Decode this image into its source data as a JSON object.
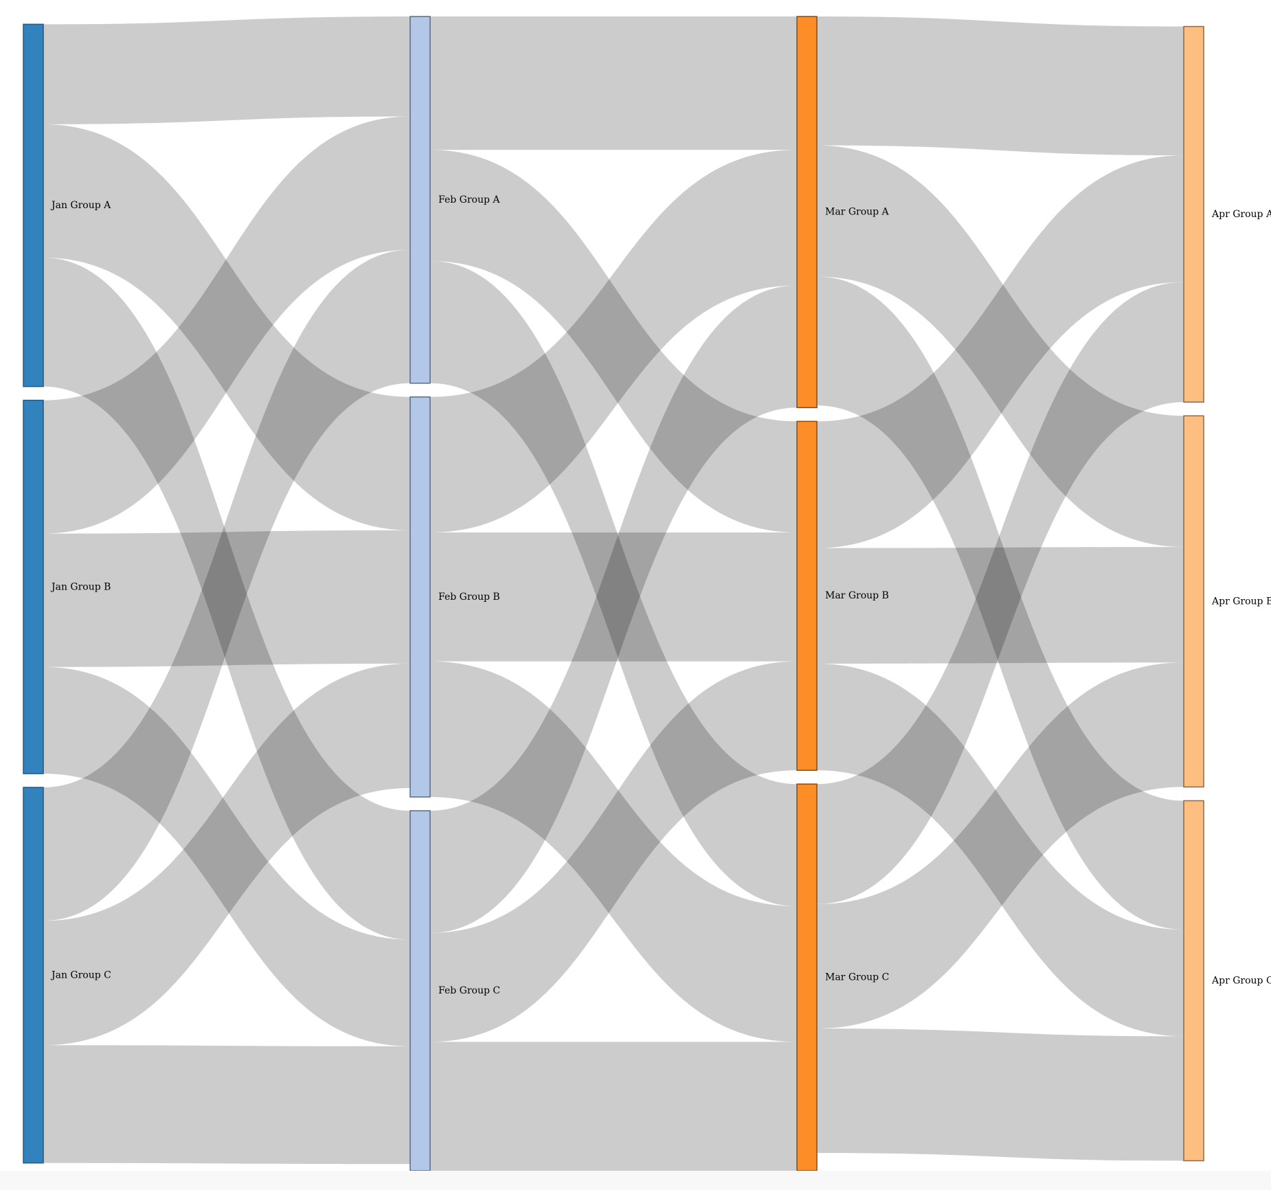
{
  "chart_data": {
    "type": "sankey",
    "columns": [
      "Jan",
      "Feb",
      "Mar",
      "Apr"
    ],
    "nodes": [
      {
        "id": "jan_a",
        "label": "Jan Group A",
        "column": 0,
        "color": "#3182bd",
        "stroke": "#215a85"
      },
      {
        "id": "jan_b",
        "label": "Jan Group B",
        "column": 0,
        "color": "#3182bd",
        "stroke": "#215a85"
      },
      {
        "id": "jan_c",
        "label": "Jan Group C",
        "column": 0,
        "color": "#3182bd",
        "stroke": "#215a85"
      },
      {
        "id": "feb_a",
        "label": "Feb Group A",
        "column": 1,
        "color": "#b3c7e8",
        "stroke": "#5a6b80"
      },
      {
        "id": "feb_b",
        "label": "Feb Group B",
        "column": 1,
        "color": "#b3c7e8",
        "stroke": "#5a6b80"
      },
      {
        "id": "feb_c",
        "label": "Feb Group C",
        "column": 1,
        "color": "#b3c7e8",
        "stroke": "#5a6b80"
      },
      {
        "id": "mar_a",
        "label": "Mar Group A",
        "column": 2,
        "color": "#fd8d27",
        "stroke": "#8a4a12"
      },
      {
        "id": "mar_b",
        "label": "Mar Group B",
        "column": 2,
        "color": "#fd8d27",
        "stroke": "#8a4a12"
      },
      {
        "id": "mar_c",
        "label": "Mar Group C",
        "column": 2,
        "color": "#fd8d27",
        "stroke": "#8a4a12"
      },
      {
        "id": "apr_a",
        "label": "Apr Group A",
        "column": 3,
        "color": "#fdbe82",
        "stroke": "#8a6a48"
      },
      {
        "id": "apr_b",
        "label": "Apr Group B",
        "column": 3,
        "color": "#fdbe82",
        "stroke": "#8a6a48"
      },
      {
        "id": "apr_c",
        "label": "Apr Group C",
        "column": 3,
        "color": "#fdbe82",
        "stroke": "#8a6a48"
      }
    ],
    "links": [
      {
        "source": "jan_a",
        "target": "feb_a",
        "value": 45
      },
      {
        "source": "jan_a",
        "target": "feb_b",
        "value": 60
      },
      {
        "source": "jan_a",
        "target": "feb_c",
        "value": 58
      },
      {
        "source": "jan_b",
        "target": "feb_a",
        "value": 60
      },
      {
        "source": "jan_b",
        "target": "feb_b",
        "value": 60
      },
      {
        "source": "jan_b",
        "target": "feb_c",
        "value": 48
      },
      {
        "source": "jan_c",
        "target": "feb_a",
        "value": 60
      },
      {
        "source": "jan_c",
        "target": "feb_b",
        "value": 56
      },
      {
        "source": "jan_c",
        "target": "feb_c",
        "value": 53
      },
      {
        "source": "feb_a",
        "target": "mar_a",
        "value": 60
      },
      {
        "source": "feb_a",
        "target": "mar_b",
        "value": 50
      },
      {
        "source": "feb_a",
        "target": "mar_c",
        "value": 55
      },
      {
        "source": "feb_b",
        "target": "mar_a",
        "value": 61
      },
      {
        "source": "feb_b",
        "target": "mar_b",
        "value": 58
      },
      {
        "source": "feb_b",
        "target": "mar_c",
        "value": 61
      },
      {
        "source": "feb_c",
        "target": "mar_a",
        "value": 55
      },
      {
        "source": "feb_c",
        "target": "mar_b",
        "value": 49
      },
      {
        "source": "feb_c",
        "target": "mar_c",
        "value": 58
      },
      {
        "source": "mar_a",
        "target": "apr_a",
        "value": 58
      },
      {
        "source": "mar_a",
        "target": "apr_b",
        "value": 59
      },
      {
        "source": "mar_a",
        "target": "apr_c",
        "value": 58
      },
      {
        "source": "mar_b",
        "target": "apr_a",
        "value": 57
      },
      {
        "source": "mar_b",
        "target": "apr_b",
        "value": 52
      },
      {
        "source": "mar_b",
        "target": "apr_c",
        "value": 48
      },
      {
        "source": "mar_c",
        "target": "apr_a",
        "value": 54
      },
      {
        "source": "mar_c",
        "target": "apr_b",
        "value": 56
      },
      {
        "source": "mar_c",
        "target": "apr_c",
        "value": 56
      }
    ],
    "link_color": "#000000",
    "link_opacity": 0.2
  }
}
